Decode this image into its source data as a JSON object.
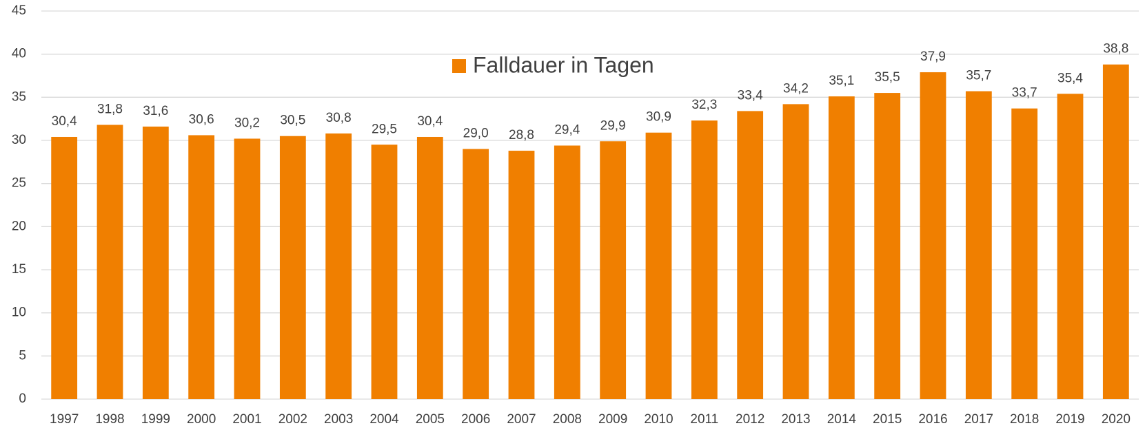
{
  "chart_data": {
    "type": "bar",
    "categories": [
      "1997",
      "1998",
      "1999",
      "2000",
      "2001",
      "2002",
      "2003",
      "2004",
      "2005",
      "2006",
      "2007",
      "2008",
      "2009",
      "2010",
      "2011",
      "2012",
      "2013",
      "2014",
      "2015",
      "2016",
      "2017",
      "2018",
      "2019",
      "2020"
    ],
    "series": [
      {
        "name": "Falldauer in Tagen",
        "color": "#f07f00",
        "values": [
          30.4,
          31.8,
          31.6,
          30.6,
          30.2,
          30.5,
          30.8,
          29.5,
          30.4,
          29.0,
          28.8,
          29.4,
          29.9,
          30.9,
          32.3,
          33.4,
          34.2,
          35.1,
          35.5,
          37.9,
          35.7,
          33.7,
          35.4,
          38.8
        ],
        "value_labels": [
          "30,4",
          "31,8",
          "31,6",
          "30,6",
          "30,2",
          "30,5",
          "30,8",
          "29,5",
          "30,4",
          "29,0",
          "28,8",
          "29,4",
          "29,9",
          "30,9",
          "32,3",
          "33,4",
          "34,2",
          "35,1",
          "35,5",
          "37,9",
          "35,7",
          "33,7",
          "35,4",
          "38,8"
        ]
      }
    ],
    "ylim": [
      0,
      45
    ],
    "yticks": [
      0,
      5,
      10,
      15,
      20,
      25,
      30,
      35,
      40,
      45
    ],
    "grid": true,
    "legend": "top"
  }
}
